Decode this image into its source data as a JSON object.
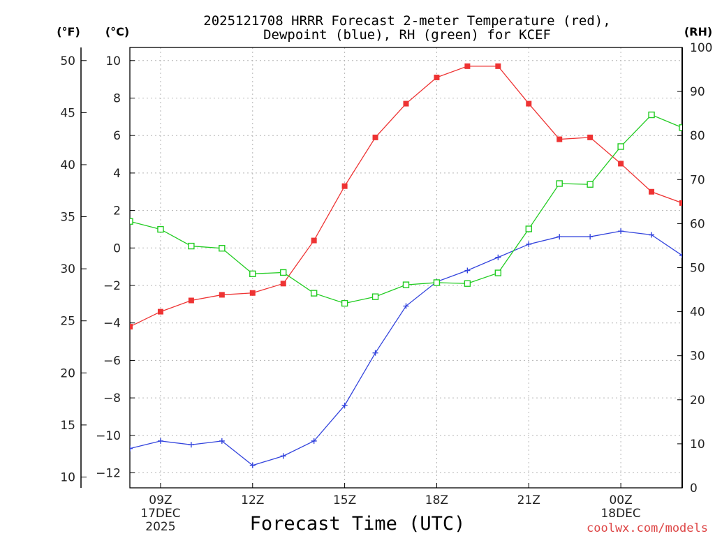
{
  "chart_data": {
    "type": "line",
    "title": "2025121708 HRRR Forecast 2-meter Temperature (red),",
    "subtitle": "Dewpoint (blue), RH (green) for KCEF",
    "xlabel": "Forecast Time (UTC)",
    "credit": "coolwx.com/models",
    "units": {
      "fahrenheit": "(°F)",
      "celsius": "(°C)",
      "rh": "(RH)"
    },
    "x_hours": [
      8,
      9,
      10,
      11,
      12,
      13,
      14,
      15,
      16,
      17,
      18,
      19,
      20,
      21,
      22,
      23,
      24,
      25,
      26
    ],
    "x_ticks": [
      {
        "hour": 9,
        "lines": [
          "09Z",
          "17DEC",
          "2025"
        ]
      },
      {
        "hour": 12,
        "lines": [
          "12Z"
        ]
      },
      {
        "hour": 15,
        "lines": [
          "15Z"
        ]
      },
      {
        "hour": 18,
        "lines": [
          "18Z"
        ]
      },
      {
        "hour": 21,
        "lines": [
          "21Z"
        ]
      },
      {
        "hour": 24,
        "lines": [
          "00Z",
          "18DEC"
        ]
      }
    ],
    "x_range": [
      8,
      26
    ],
    "y_celsius": {
      "range": [
        -12.8,
        10.7
      ],
      "ticks": [
        10,
        8,
        6,
        4,
        2,
        0,
        -2,
        -4,
        -6,
        -8,
        -10,
        -12
      ],
      "tick_labels": [
        "10",
        "8",
        "6",
        "4",
        "2",
        "0",
        "−2",
        "−4",
        "−6",
        "−8",
        "−10",
        "−12"
      ]
    },
    "y_fahrenheit": {
      "ticks": [
        50,
        45,
        40,
        35,
        30,
        25,
        20,
        15,
        10
      ],
      "tick_labels": [
        "50",
        "45",
        "40",
        "35",
        "30",
        "25",
        "20",
        "15",
        "10"
      ]
    },
    "y_rh": {
      "range": [
        0,
        100
      ],
      "ticks": [
        100,
        90,
        80,
        70,
        60,
        50,
        40,
        30,
        20,
        10,
        0
      ],
      "tick_labels": [
        "100",
        "90",
        "80",
        "70",
        "60",
        "50",
        "40",
        "30",
        "20",
        "10",
        "0"
      ]
    },
    "series": [
      {
        "name": "Temperature",
        "axis": "celsius",
        "color": "#ee3333",
        "marker": "filled-square",
        "values": [
          -4.2,
          -3.4,
          -2.8,
          -2.5,
          -2.4,
          -1.9,
          0.4,
          3.3,
          5.9,
          7.7,
          9.1,
          9.7,
          9.7,
          7.7,
          5.8,
          5.9,
          4.5,
          3.0,
          2.4
        ]
      },
      {
        "name": "Dewpoint",
        "axis": "celsius",
        "color": "#3344dd",
        "marker": "plus",
        "values": [
          -10.7,
          -10.3,
          -10.5,
          -10.3,
          -11.6,
          -11.1,
          -10.3,
          -8.4,
          -5.6,
          -3.1,
          -1.8,
          -1.2,
          -0.5,
          0.2,
          0.6,
          0.6,
          0.9,
          0.7,
          -0.4
        ]
      },
      {
        "name": "RH",
        "axis": "rh",
        "color": "#22cc22",
        "marker": "open-square",
        "values": [
          60.5,
          58.7,
          54.9,
          54.4,
          48.6,
          48.9,
          44.2,
          41.9,
          43.4,
          46.1,
          46.6,
          46.4,
          48.8,
          58.8,
          69.1,
          68.9,
          77.5,
          84.7,
          81.8
        ]
      }
    ]
  }
}
